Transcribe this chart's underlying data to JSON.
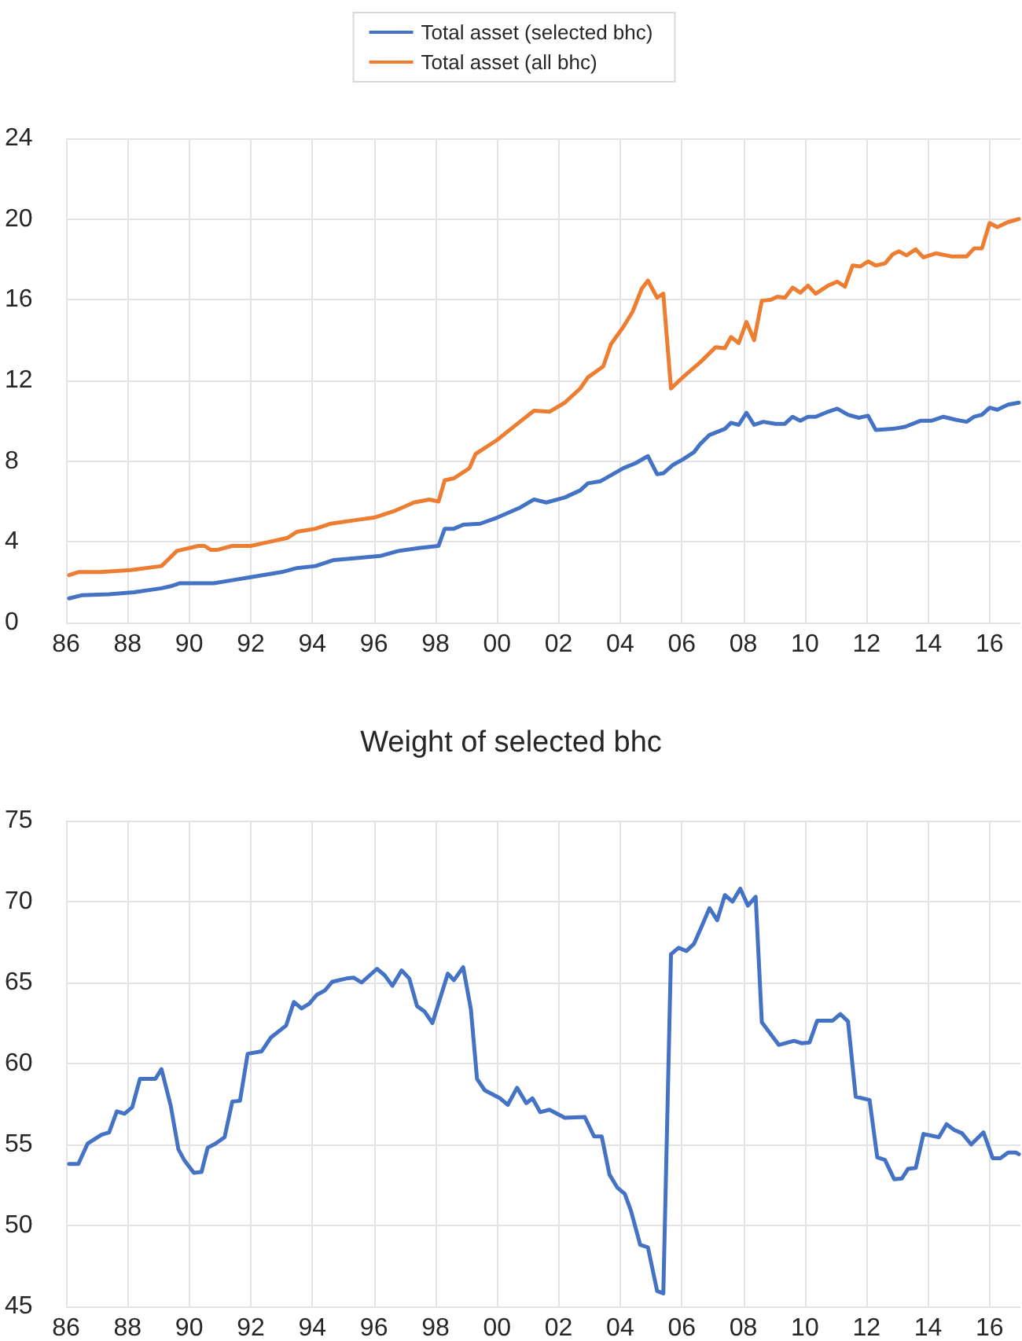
{
  "chart_data": [
    {
      "type": "line",
      "legend": "top",
      "grid": true,
      "marker": "none",
      "line_style": "solid",
      "xlim": [
        1986,
        2017
      ],
      "xticks": [
        {
          "value": 1986,
          "label": "86"
        },
        {
          "value": 1988,
          "label": "88"
        },
        {
          "value": 1990,
          "label": "90"
        },
        {
          "value": 1992,
          "label": "92"
        },
        {
          "value": 1994,
          "label": "94"
        },
        {
          "value": 1996,
          "label": "96"
        },
        {
          "value": 1998,
          "label": "98"
        },
        {
          "value": 2000,
          "label": "00"
        },
        {
          "value": 2002,
          "label": "02"
        },
        {
          "value": 2004,
          "label": "04"
        },
        {
          "value": 2006,
          "label": "06"
        },
        {
          "value": 2008,
          "label": "08"
        },
        {
          "value": 2010,
          "label": "10"
        },
        {
          "value": 2012,
          "label": "12"
        },
        {
          "value": 2014,
          "label": "14"
        },
        {
          "value": 2016,
          "label": "16"
        }
      ],
      "ylim": [
        0,
        24
      ],
      "yticks": [
        0,
        4,
        8,
        12,
        16,
        20,
        24
      ],
      "series": [
        {
          "name": "Total asset (selected bhc)",
          "color": "#4472c4",
          "x": [
            1986.1,
            1986.5,
            1987.4,
            1988.2,
            1989.1,
            1989.4,
            1989.7,
            1990.8,
            1991.4,
            1992,
            1993,
            1993.5,
            1994.1,
            1994.7,
            1995.5,
            1996.2,
            1996.8,
            1997.5,
            1998.1,
            1998.3,
            1998.6,
            1998.9,
            1999.45,
            2000,
            2000.75,
            2001.2,
            2001.6,
            2002.2,
            2002.7,
            2002.95,
            2003.35,
            2003.7,
            2004.1,
            2004.5,
            2004.9,
            2005.2,
            2005.4,
            2005.7,
            2006.05,
            2006.4,
            2006.6,
            2006.9,
            2007.4,
            2007.6,
            2007.85,
            2008.1,
            2008.35,
            2008.65,
            2009.05,
            2009.35,
            2009.6,
            2009.85,
            2010.1,
            2010.35,
            2010.75,
            2011.05,
            2011.4,
            2011.75,
            2012.05,
            2012.3,
            2012.85,
            2013.25,
            2013.75,
            2014.1,
            2014.5,
            2014.9,
            2015.25,
            2015.5,
            2015.75,
            2016,
            2016.25,
            2016.6,
            2016.95
          ],
          "values": [
            1.2,
            1.35,
            1.4,
            1.5,
            1.7,
            1.8,
            1.95,
            1.95,
            2.1,
            2.25,
            2.5,
            2.7,
            2.8,
            3.1,
            3.2,
            3.3,
            3.55,
            3.7,
            3.8,
            4.65,
            4.65,
            4.85,
            4.9,
            5.2,
            5.7,
            6.1,
            5.95,
            6.2,
            6.55,
            6.9,
            7,
            7.3,
            7.65,
            7.9,
            8.25,
            7.35,
            7.4,
            7.8,
            8.1,
            8.45,
            8.85,
            9.3,
            9.6,
            9.9,
            9.8,
            10.4,
            9.8,
            9.95,
            9.85,
            9.85,
            10.2,
            10,
            10.2,
            10.2,
            10.45,
            10.6,
            10.3,
            10.15,
            10.25,
            9.55,
            9.6,
            9.7,
            10,
            10,
            10.2,
            10.05,
            9.95,
            10.2,
            10.3,
            10.65,
            10.55,
            10.8,
            10.9
          ]
        },
        {
          "name": "Total asset (all bhc)",
          "color": "#ed7d31",
          "x": [
            1986.1,
            1986.4,
            1987.1,
            1988.1,
            1989.1,
            1989.3,
            1989.6,
            1990.3,
            1990.5,
            1990.7,
            1990.9,
            1991.4,
            1992,
            1992.6,
            1993.2,
            1993.5,
            1994.1,
            1994.6,
            1995.5,
            1996,
            1996.7,
            1997.3,
            1997.8,
            1998.1,
            1998.3,
            1998.6,
            1999.1,
            1999.3,
            2000,
            2000.7,
            2001.2,
            2001.7,
            2002.2,
            2002.7,
            2002.95,
            2003.45,
            2003.7,
            2004.1,
            2004.4,
            2004.7,
            2004.9,
            2005.2,
            2005.4,
            2005.65,
            2006.1,
            2006.6,
            2007.1,
            2007.4,
            2007.6,
            2007.85,
            2008.1,
            2008.35,
            2008.6,
            2008.9,
            2009.1,
            2009.35,
            2009.6,
            2009.85,
            2010.1,
            2010.35,
            2010.75,
            2011.05,
            2011.3,
            2011.55,
            2011.8,
            2012.05,
            2012.3,
            2012.6,
            2012.85,
            2013.05,
            2013.3,
            2013.6,
            2013.85,
            2014.25,
            2014.75,
            2015.25,
            2015.5,
            2015.75,
            2016,
            2016.25,
            2016.6,
            2016.95
          ],
          "values": [
            2.35,
            2.5,
            2.5,
            2.6,
            2.8,
            3.1,
            3.55,
            3.8,
            3.8,
            3.6,
            3.6,
            3.8,
            3.8,
            4,
            4.2,
            4.5,
            4.65,
            4.9,
            5.1,
            5.2,
            5.55,
            5.95,
            6.1,
            6,
            7.05,
            7.15,
            7.65,
            8.35,
            9.05,
            9.9,
            10.5,
            10.45,
            10.9,
            11.6,
            12.15,
            12.7,
            13.8,
            14.65,
            15.4,
            16.55,
            16.95,
            16.1,
            16.3,
            11.6,
            12.25,
            12.9,
            13.65,
            13.6,
            14.15,
            13.85,
            14.9,
            14,
            15.95,
            16,
            16.15,
            16.1,
            16.6,
            16.35,
            16.7,
            16.3,
            16.7,
            16.9,
            16.65,
            17.7,
            17.65,
            17.9,
            17.7,
            17.8,
            18.25,
            18.4,
            18.2,
            18.5,
            18.1,
            18.3,
            18.15,
            18.15,
            18.55,
            18.55,
            19.8,
            19.6,
            19.85,
            20
          ]
        }
      ]
    },
    {
      "type": "line",
      "title": "Weight of selected bhc",
      "grid": true,
      "marker": "none",
      "line_style": "solid",
      "xlim": [
        1986,
        2017
      ],
      "xticks": [
        {
          "value": 1986,
          "label": "86"
        },
        {
          "value": 1988,
          "label": "88"
        },
        {
          "value": 1990,
          "label": "90"
        },
        {
          "value": 1992,
          "label": "92"
        },
        {
          "value": 1994,
          "label": "94"
        },
        {
          "value": 1996,
          "label": "96"
        },
        {
          "value": 1998,
          "label": "98"
        },
        {
          "value": 2000,
          "label": "00"
        },
        {
          "value": 2002,
          "label": "02"
        },
        {
          "value": 2004,
          "label": "04"
        },
        {
          "value": 2006,
          "label": "06"
        },
        {
          "value": 2008,
          "label": "08"
        },
        {
          "value": 2010,
          "label": "10"
        },
        {
          "value": 2012,
          "label": "12"
        },
        {
          "value": 2014,
          "label": "14"
        },
        {
          "value": 2016,
          "label": "16"
        }
      ],
      "ylim": [
        45,
        75
      ],
      "yticks": [
        45,
        50,
        55,
        60,
        65,
        70,
        75
      ],
      "series": [
        {
          "color": "#4472c4",
          "x": [
            1986.1,
            1986.4,
            1986.7,
            1987.15,
            1987.4,
            1987.65,
            1987.9,
            1988.15,
            1988.4,
            1988.9,
            1989.1,
            1989.4,
            1989.65,
            1989.85,
            1990.15,
            1990.4,
            1990.6,
            1990.85,
            1991.15,
            1991.4,
            1991.65,
            1991.9,
            1992.35,
            1992.65,
            1993.15,
            1993.4,
            1993.65,
            1993.9,
            1994.15,
            1994.4,
            1994.65,
            1995.1,
            1995.35,
            1995.6,
            1996.1,
            1996.35,
            1996.6,
            1996.9,
            1997.15,
            1997.4,
            1997.65,
            1997.9,
            1998.4,
            1998.6,
            1998.9,
            1999.15,
            1999.35,
            1999.6,
            2000.1,
            2000.35,
            2000.65,
            2000.95,
            2001.15,
            2001.4,
            2001.7,
            2002.2,
            2002.85,
            2003.15,
            2003.4,
            2003.65,
            2003.9,
            2004.15,
            2004.35,
            2004.65,
            2004.9,
            2005.2,
            2005.4,
            2005.65,
            2005.9,
            2006.15,
            2006.4,
            2006.7,
            2006.9,
            2007.15,
            2007.4,
            2007.65,
            2007.9,
            2008.15,
            2008.4,
            2008.6,
            2009.15,
            2009.65,
            2009.9,
            2010.15,
            2010.4,
            2010.9,
            2011.15,
            2011.4,
            2011.65,
            2012.1,
            2012.35,
            2012.6,
            2012.9,
            2013.15,
            2013.35,
            2013.6,
            2013.85,
            2014.35,
            2014.6,
            2014.85,
            2015.1,
            2015.4,
            2015.8,
            2016.1,
            2016.35,
            2016.6,
            2016.85,
            2016.95
          ],
          "values": [
            53.8,
            53.8,
            55.05,
            55.6,
            55.75,
            57.05,
            56.9,
            57.3,
            59.05,
            59.05,
            59.65,
            57.4,
            54.7,
            54,
            53.25,
            53.3,
            54.8,
            55.05,
            55.45,
            57.65,
            57.7,
            60.6,
            60.75,
            61.6,
            62.35,
            63.8,
            63.4,
            63.7,
            64.25,
            64.5,
            65.05,
            65.25,
            65.3,
            65,
            65.85,
            65.45,
            64.8,
            65.75,
            65.25,
            63.55,
            63.2,
            62.5,
            65.55,
            65.15,
            65.95,
            63.35,
            59.05,
            58.35,
            57.85,
            57.45,
            58.5,
            57.55,
            57.85,
            57,
            57.15,
            56.65,
            56.7,
            55.5,
            55.5,
            53.15,
            52.35,
            51.95,
            50.9,
            48.8,
            48.65,
            45.95,
            45.8,
            66.75,
            67.15,
            66.95,
            67.4,
            68.7,
            69.6,
            68.85,
            70.4,
            70,
            70.8,
            69.75,
            70.3,
            62.55,
            61.15,
            61.4,
            61.25,
            61.3,
            62.65,
            62.65,
            63.05,
            62.6,
            57.95,
            57.75,
            54.2,
            54.05,
            52.85,
            52.9,
            53.5,
            53.55,
            55.65,
            55.45,
            56.25,
            55.9,
            55.7,
            55,
            55.75,
            54.15,
            54.15,
            54.5,
            54.5,
            54.4
          ]
        }
      ]
    }
  ]
}
